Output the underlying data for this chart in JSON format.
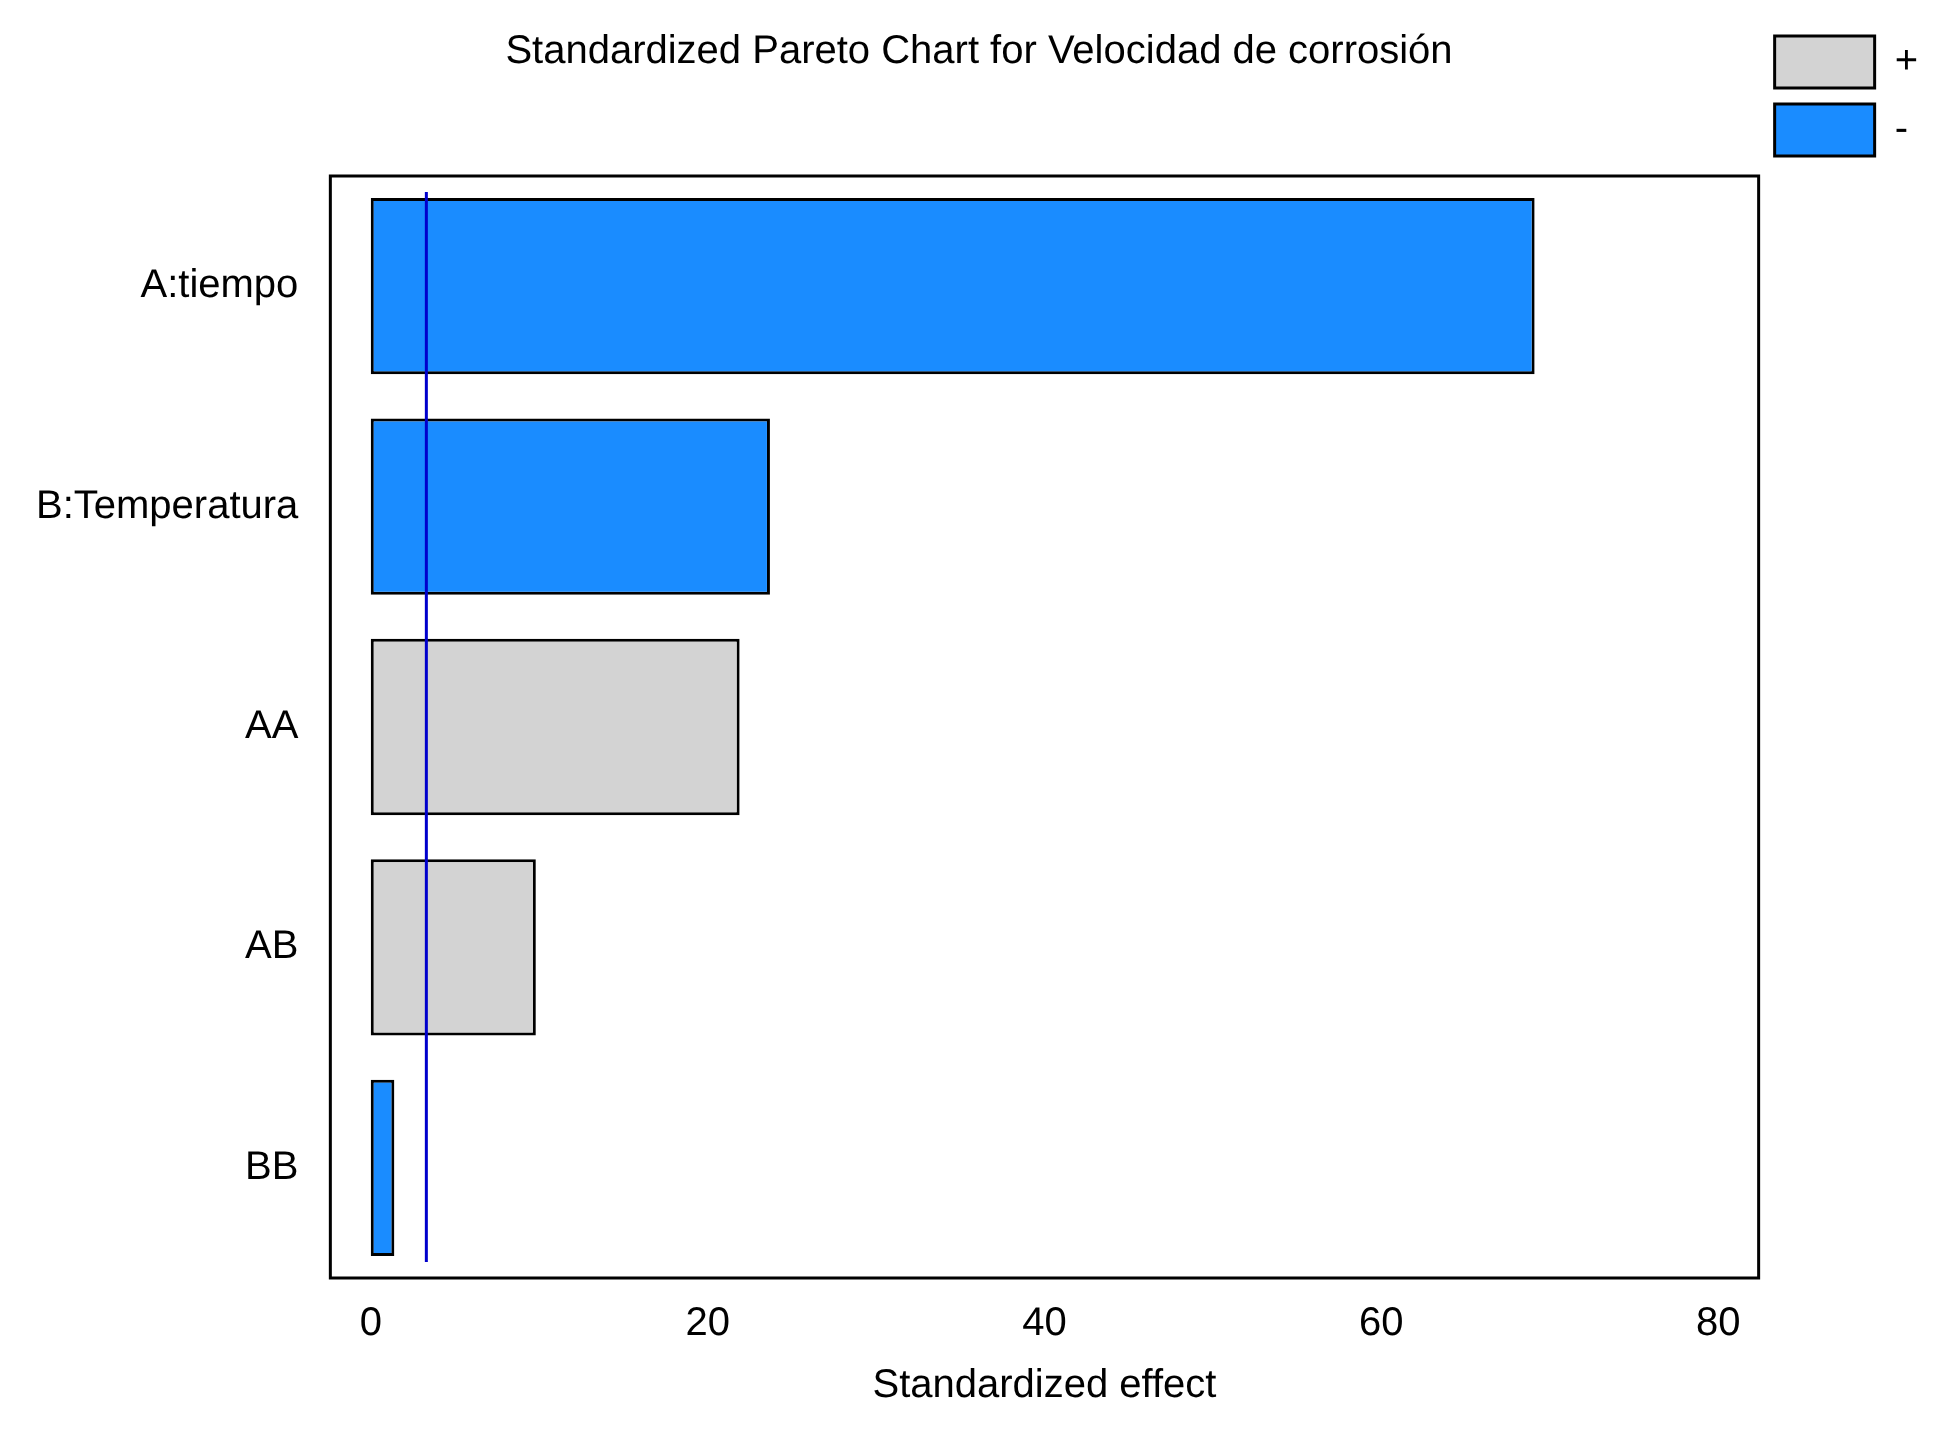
{
  "chart_data": {
    "type": "bar",
    "orientation": "horizontal",
    "stacked": true,
    "title": "Standardized Pareto Chart for Velocidad de corrosión",
    "xlabel": "Standardized effect",
    "categories": [
      "A:tiempo",
      "B:Temperatura",
      "AA",
      "AB",
      "BB"
    ],
    "series": [
      {
        "name": "+",
        "color": "#d3d3d3",
        "values": [
          null,
          null,
          21.9,
          9.8,
          null
        ]
      },
      {
        "name": "-",
        "color": "#1a8cff",
        "values": [
          69.1,
          23.7,
          null,
          null,
          1.4
        ]
      }
    ],
    "xlim": [
      -2.4,
      82.4
    ],
    "xticks": [
      0,
      20,
      40,
      60,
      80
    ],
    "ref_lines": [
      {
        "axis": "x",
        "value": 3.3,
        "color": "#0000cc"
      }
    ],
    "grid": false,
    "legend": "right"
  }
}
